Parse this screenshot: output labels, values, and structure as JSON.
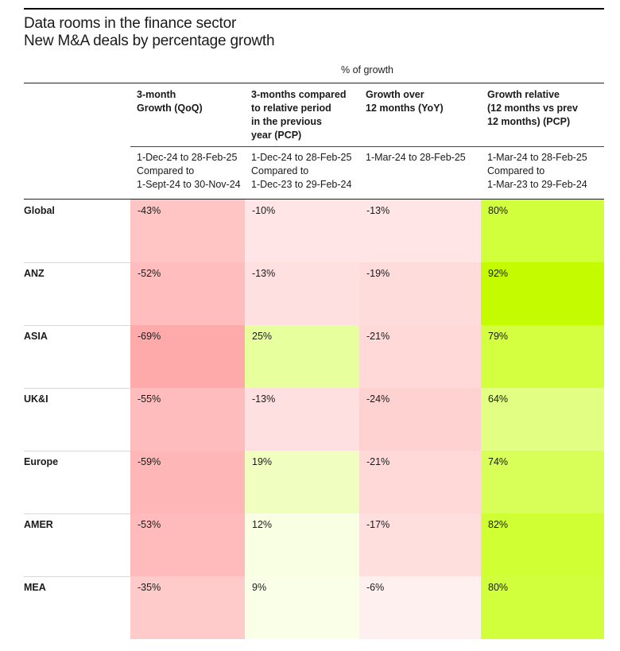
{
  "chart_data": {
    "type": "table",
    "title": "Data rooms in the finance sector",
    "subtitle": "New M&A deals by percentage growth",
    "group_label": "% of growth",
    "columns": [
      {
        "header": [
          "3-month",
          "Growth (QoQ)"
        ],
        "range": "1-Dec-24 to 28-Feb-25\nCompared to\n1-Sept-24 to 30-Nov-24"
      },
      {
        "header": [
          "3-months compared",
          "to relative period",
          "in the previous",
          "year (PCP)"
        ],
        "range": "1-Dec-24 to 28-Feb-25\nCompared to\n1-Dec-23 to 29-Feb-24"
      },
      {
        "header": [
          "Growth over",
          "12 months (YoY)"
        ],
        "range": "1-Mar-24 to 28-Feb-25"
      },
      {
        "header": [
          "Growth relative",
          "(12 months vs prev",
          "12 months) (PCP)"
        ],
        "range": "1-Mar-24 to 28-Feb-25\nCompared to\n1-Mar-23 to 29-Feb-24"
      }
    ],
    "rows": [
      {
        "label": "Global",
        "values": [
          "-43%",
          "-10%",
          "-13%",
          "80%"
        ],
        "colors": [
          "#ffc4c4",
          "#ffe5e5",
          "#ffe5e5",
          "#d2ff3c"
        ]
      },
      {
        "label": "ANZ",
        "values": [
          "-52%",
          "-13%",
          "-19%",
          "92%"
        ],
        "colors": [
          "#ffbdbd",
          "#ffe0e0",
          "#ffdcdc",
          "#c4fb00"
        ]
      },
      {
        "label": "ASIA",
        "values": [
          "-69%",
          "25%",
          "-21%",
          "79%"
        ],
        "colors": [
          "#ffaaaa",
          "#e8ff9e",
          "#ffd8d8",
          "#d4ff40"
        ]
      },
      {
        "label": "UK&I",
        "values": [
          "-55%",
          "-13%",
          "-24%",
          "64%"
        ],
        "colors": [
          "#ffbcbc",
          "#ffe0e0",
          "#ffd2d2",
          "#e2ff84"
        ]
      },
      {
        "label": "Europe",
        "values": [
          "-59%",
          "19%",
          "-21%",
          "74%"
        ],
        "colors": [
          "#ffb6b6",
          "#f0ffc0",
          "#ffd8d8",
          "#d8ff58"
        ]
      },
      {
        "label": "AMER",
        "values": [
          "-53%",
          "12%",
          "-17%",
          "82%"
        ],
        "colors": [
          "#ffbbbb",
          "#f8ffe2",
          "#ffdede",
          "#d0ff34"
        ]
      },
      {
        "label": "MEA",
        "values": [
          "-35%",
          "9%",
          "-6%",
          "80%"
        ],
        "colors": [
          "#ffcaca",
          "#faffe8",
          "#fff0f0",
          "#d2ff3c"
        ]
      }
    ]
  }
}
